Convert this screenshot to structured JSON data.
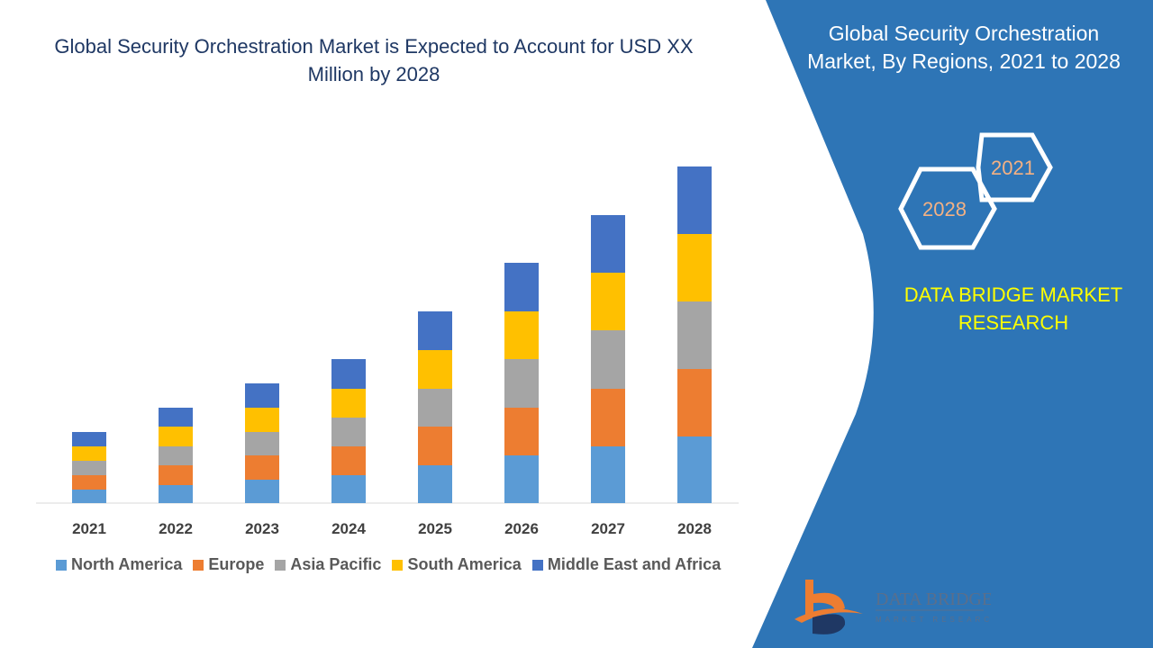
{
  "title": "Global Security Orchestration Market is Expected to Account for USD XX Million by 2028",
  "side_panel": {
    "title": "Global Security Orchestration Market,  By Regions, 2021 to 2028",
    "hex_start": "2021",
    "hex_end": "2028",
    "brand": "DATA BRIDGE MARKET RESEARCH",
    "logo_text": "DATA BRIDGE",
    "logo_subtext": "MARKET RESEARCH",
    "color": "#2e75b6"
  },
  "chart_data": {
    "type": "bar",
    "stacked": true,
    "title": "Global Security Orchestration Market is Expected to Account for USD XX Million by 2028",
    "xlabel": "",
    "ylabel": "",
    "y_axis_shown": false,
    "grid": false,
    "legend_placement": "bottom",
    "categories": [
      "2021",
      "2022",
      "2023",
      "2024",
      "2025",
      "2026",
      "2027",
      "2028"
    ],
    "series": [
      {
        "name": "North America",
        "color": "#5b9bd5",
        "values": [
          15,
          20,
          26,
          31,
          42,
          53,
          63,
          74
        ]
      },
      {
        "name": "Europe",
        "color": "#ed7d31",
        "values": [
          16,
          22,
          27,
          32,
          43,
          53,
          64,
          75
        ]
      },
      {
        "name": "Asia Pacific",
        "color": "#a5a5a5",
        "values": [
          16,
          21,
          26,
          32,
          42,
          54,
          65,
          75
        ]
      },
      {
        "name": "South America",
        "color": "#ffc000",
        "values": [
          16,
          22,
          27,
          32,
          43,
          53,
          64,
          75
        ]
      },
      {
        "name": "Middle East and Africa",
        "color": "#4472c4",
        "values": [
          16,
          21,
          27,
          33,
          43,
          54,
          64,
          75
        ]
      }
    ]
  }
}
